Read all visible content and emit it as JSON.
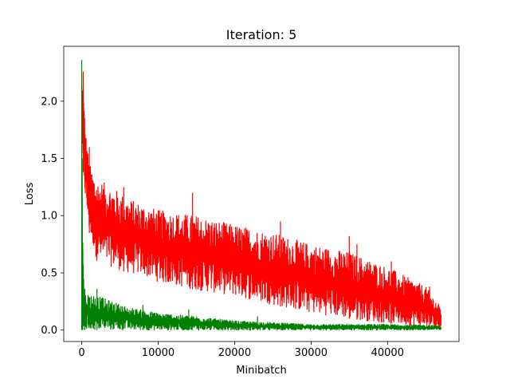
{
  "chart_data": {
    "type": "line",
    "title": "Iteration: 5",
    "xlabel": "Minibatch",
    "ylabel": "Loss",
    "xlim": [
      -2350,
      49350
    ],
    "ylim": [
      -0.1,
      2.48
    ],
    "xticks": [
      0,
      10000,
      20000,
      30000,
      40000
    ],
    "xtick_labels": [
      "0",
      "10000",
      "20000",
      "30000",
      "40000"
    ],
    "yticks": [
      0.0,
      0.5,
      1.0,
      1.5,
      2.0
    ],
    "ytick_labels": [
      "0.0",
      "0.5",
      "1.0",
      "1.5",
      "2.0"
    ],
    "grid": false,
    "n_points": 47000,
    "series": [
      {
        "color": "#ff0000",
        "x": [
          0,
          200,
          500,
          1000,
          2000,
          4000,
          6000,
          8000,
          10000,
          15000,
          20000,
          25000,
          30000,
          35000,
          40000,
          45000,
          47000
        ],
        "lower": [
          1.45,
          1.38,
          1.1,
          0.85,
          0.6,
          0.55,
          0.5,
          0.48,
          0.42,
          0.35,
          0.3,
          0.22,
          0.15,
          0.1,
          0.06,
          0.02,
          0.02
        ],
        "upper": [
          2.26,
          2.15,
          1.75,
          1.45,
          1.32,
          1.25,
          1.15,
          1.1,
          1.05,
          1.0,
          0.92,
          0.85,
          0.75,
          0.68,
          0.55,
          0.38,
          0.2
        ],
        "spikes": [
          [
            200,
            2.26
          ],
          [
            1000,
            1.6
          ],
          [
            5500,
            1.25
          ],
          [
            14500,
            1.2
          ],
          [
            26000,
            0.95
          ],
          [
            35000,
            0.82
          ],
          [
            36000,
            0.75
          ],
          [
            40500,
            0.6
          ],
          [
            45500,
            0.38
          ]
        ]
      },
      {
        "color": "#008000",
        "x": [
          0,
          100,
          300,
          500,
          1000,
          2000,
          4000,
          6000,
          10000,
          15000,
          20000,
          30000,
          40000,
          47000
        ],
        "lower": [
          0.0,
          0.0,
          0.0,
          0.0,
          0.0,
          0.0,
          0.0,
          0.0,
          0.0,
          0.0,
          0.0,
          0.0,
          0.0,
          0.0
        ],
        "upper": [
          2.36,
          1.2,
          0.3,
          0.32,
          0.32,
          0.3,
          0.25,
          0.2,
          0.15,
          0.12,
          0.08,
          0.05,
          0.05,
          0.04
        ],
        "spikes": [
          [
            0,
            2.36
          ],
          [
            60,
            1.5
          ],
          [
            150,
            0.7
          ],
          [
            400,
            0.36
          ],
          [
            2000,
            0.36
          ],
          [
            8000,
            0.22
          ],
          [
            14000,
            0.18
          ],
          [
            23000,
            0.12
          ]
        ]
      }
    ]
  }
}
